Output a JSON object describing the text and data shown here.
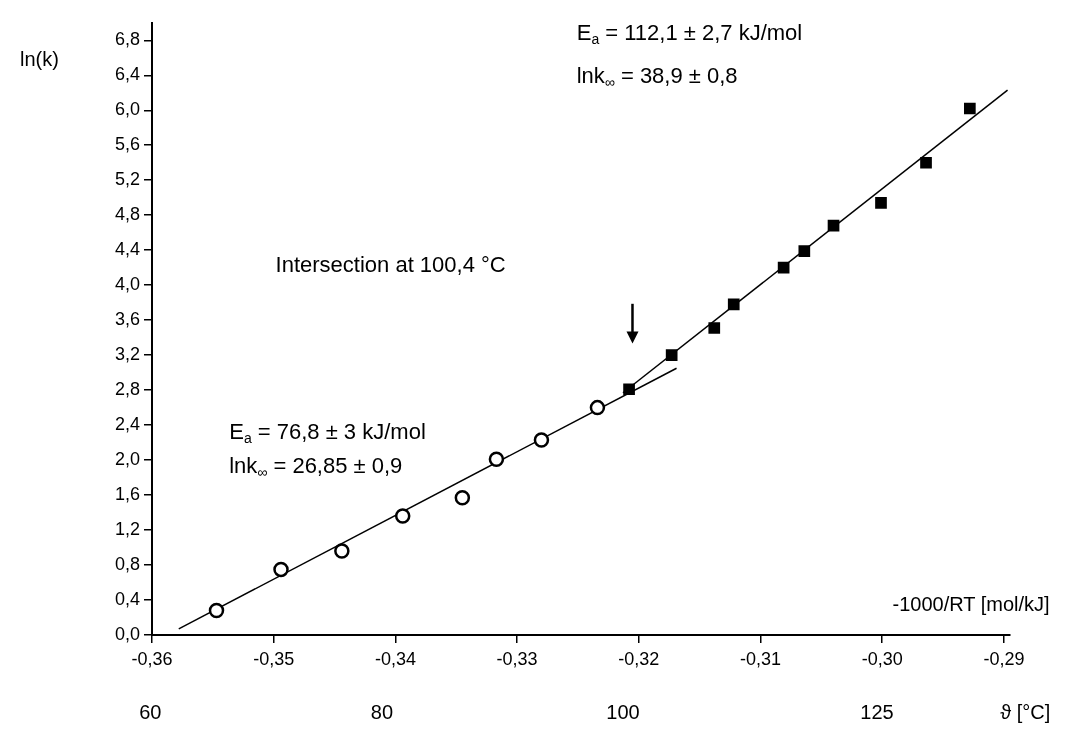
{
  "chart_data": {
    "type": "scatter",
    "xlabel": "-1000/RT [mol/kJ]",
    "ylabel": "ln(k)",
    "xlim": [
      -0.36,
      -0.2895
    ],
    "ylim": [
      0,
      7.0
    ],
    "xticks": [
      {
        "value": -0.36,
        "label": "-0,36"
      },
      {
        "value": -0.35,
        "label": "-0,35"
      },
      {
        "value": -0.34,
        "label": "-0,34"
      },
      {
        "value": -0.33,
        "label": "-0,33"
      },
      {
        "value": -0.32,
        "label": "-0,32"
      },
      {
        "value": -0.31,
        "label": "-0,31"
      },
      {
        "value": -0.3,
        "label": "-0,30"
      },
      {
        "value": -0.29,
        "label": "-0,29"
      }
    ],
    "yticks": [
      {
        "value": 0,
        "label": "0,0"
      },
      {
        "value": 0.4,
        "label": "0,4"
      },
      {
        "value": 0.8,
        "label": "0,8"
      },
      {
        "value": 1.2,
        "label": "1,2"
      },
      {
        "value": 1.6,
        "label": "1,6"
      },
      {
        "value": 2.0,
        "label": "2,0"
      },
      {
        "value": 2.4,
        "label": "2,4"
      },
      {
        "value": 2.8,
        "label": "2,8"
      },
      {
        "value": 3.2,
        "label": "3,2"
      },
      {
        "value": 3.6,
        "label": "3,6"
      },
      {
        "value": 4.0,
        "label": "4,0"
      },
      {
        "value": 4.4,
        "label": "4,4"
      },
      {
        "value": 4.8,
        "label": "4,8"
      },
      {
        "value": 5.2,
        "label": "5,2"
      },
      {
        "value": 5.6,
        "label": "5,6"
      },
      {
        "value": 6.0,
        "label": "6,0"
      },
      {
        "value": 6.4,
        "label": "6,4"
      },
      {
        "value": 6.8,
        "label": "6,8"
      }
    ],
    "grid": false,
    "legend": false,
    "series": [
      {
        "type": "scatter",
        "marker": "circle",
        "color": "#000000",
        "x": [
          -0.3547,
          -0.3494,
          -0.3444,
          -0.3394,
          -0.3345,
          -0.3317,
          -0.328,
          -0.3234
        ],
        "values": [
          0.28,
          0.75,
          0.96,
          1.36,
          1.57,
          2.01,
          2.23,
          2.6
        ]
      },
      {
        "type": "scatter",
        "marker": "square",
        "color": "#000000",
        "x": [
          -0.3208,
          -0.3173,
          -0.3138,
          -0.3122,
          -0.3081,
          -0.3064,
          -0.304,
          -0.3001,
          -0.2964,
          -0.2928
        ],
        "values": [
          2.81,
          3.2,
          3.51,
          3.78,
          4.2,
          4.39,
          4.68,
          4.94,
          5.4,
          6.02
        ]
      },
      {
        "type": "line",
        "marker": "none",
        "color": "#000000",
        "x": [
          -0.3578,
          -0.3169
        ],
        "values": [
          0.07,
          3.05
        ]
      },
      {
        "type": "line",
        "marker": "none",
        "color": "#000000",
        "x": [
          -0.3213,
          -0.2897
        ],
        "values": [
          2.77,
          6.23
        ]
      }
    ],
    "annotations": [
      "E$_{a}$ = 76,8 ± 3 kJ/mol",
      "lnk$_{∞}$ = 26,85 ± 0,9",
      "E$_{a}$ = 112,1 ± 2,7 kJ/mol",
      "lnk$_{∞}$ = 38,9 ± 0,8",
      "Intersection at 100,4 °C",
      "60",
      "80",
      "100",
      "125",
      "ϑ [°C]"
    ]
  }
}
